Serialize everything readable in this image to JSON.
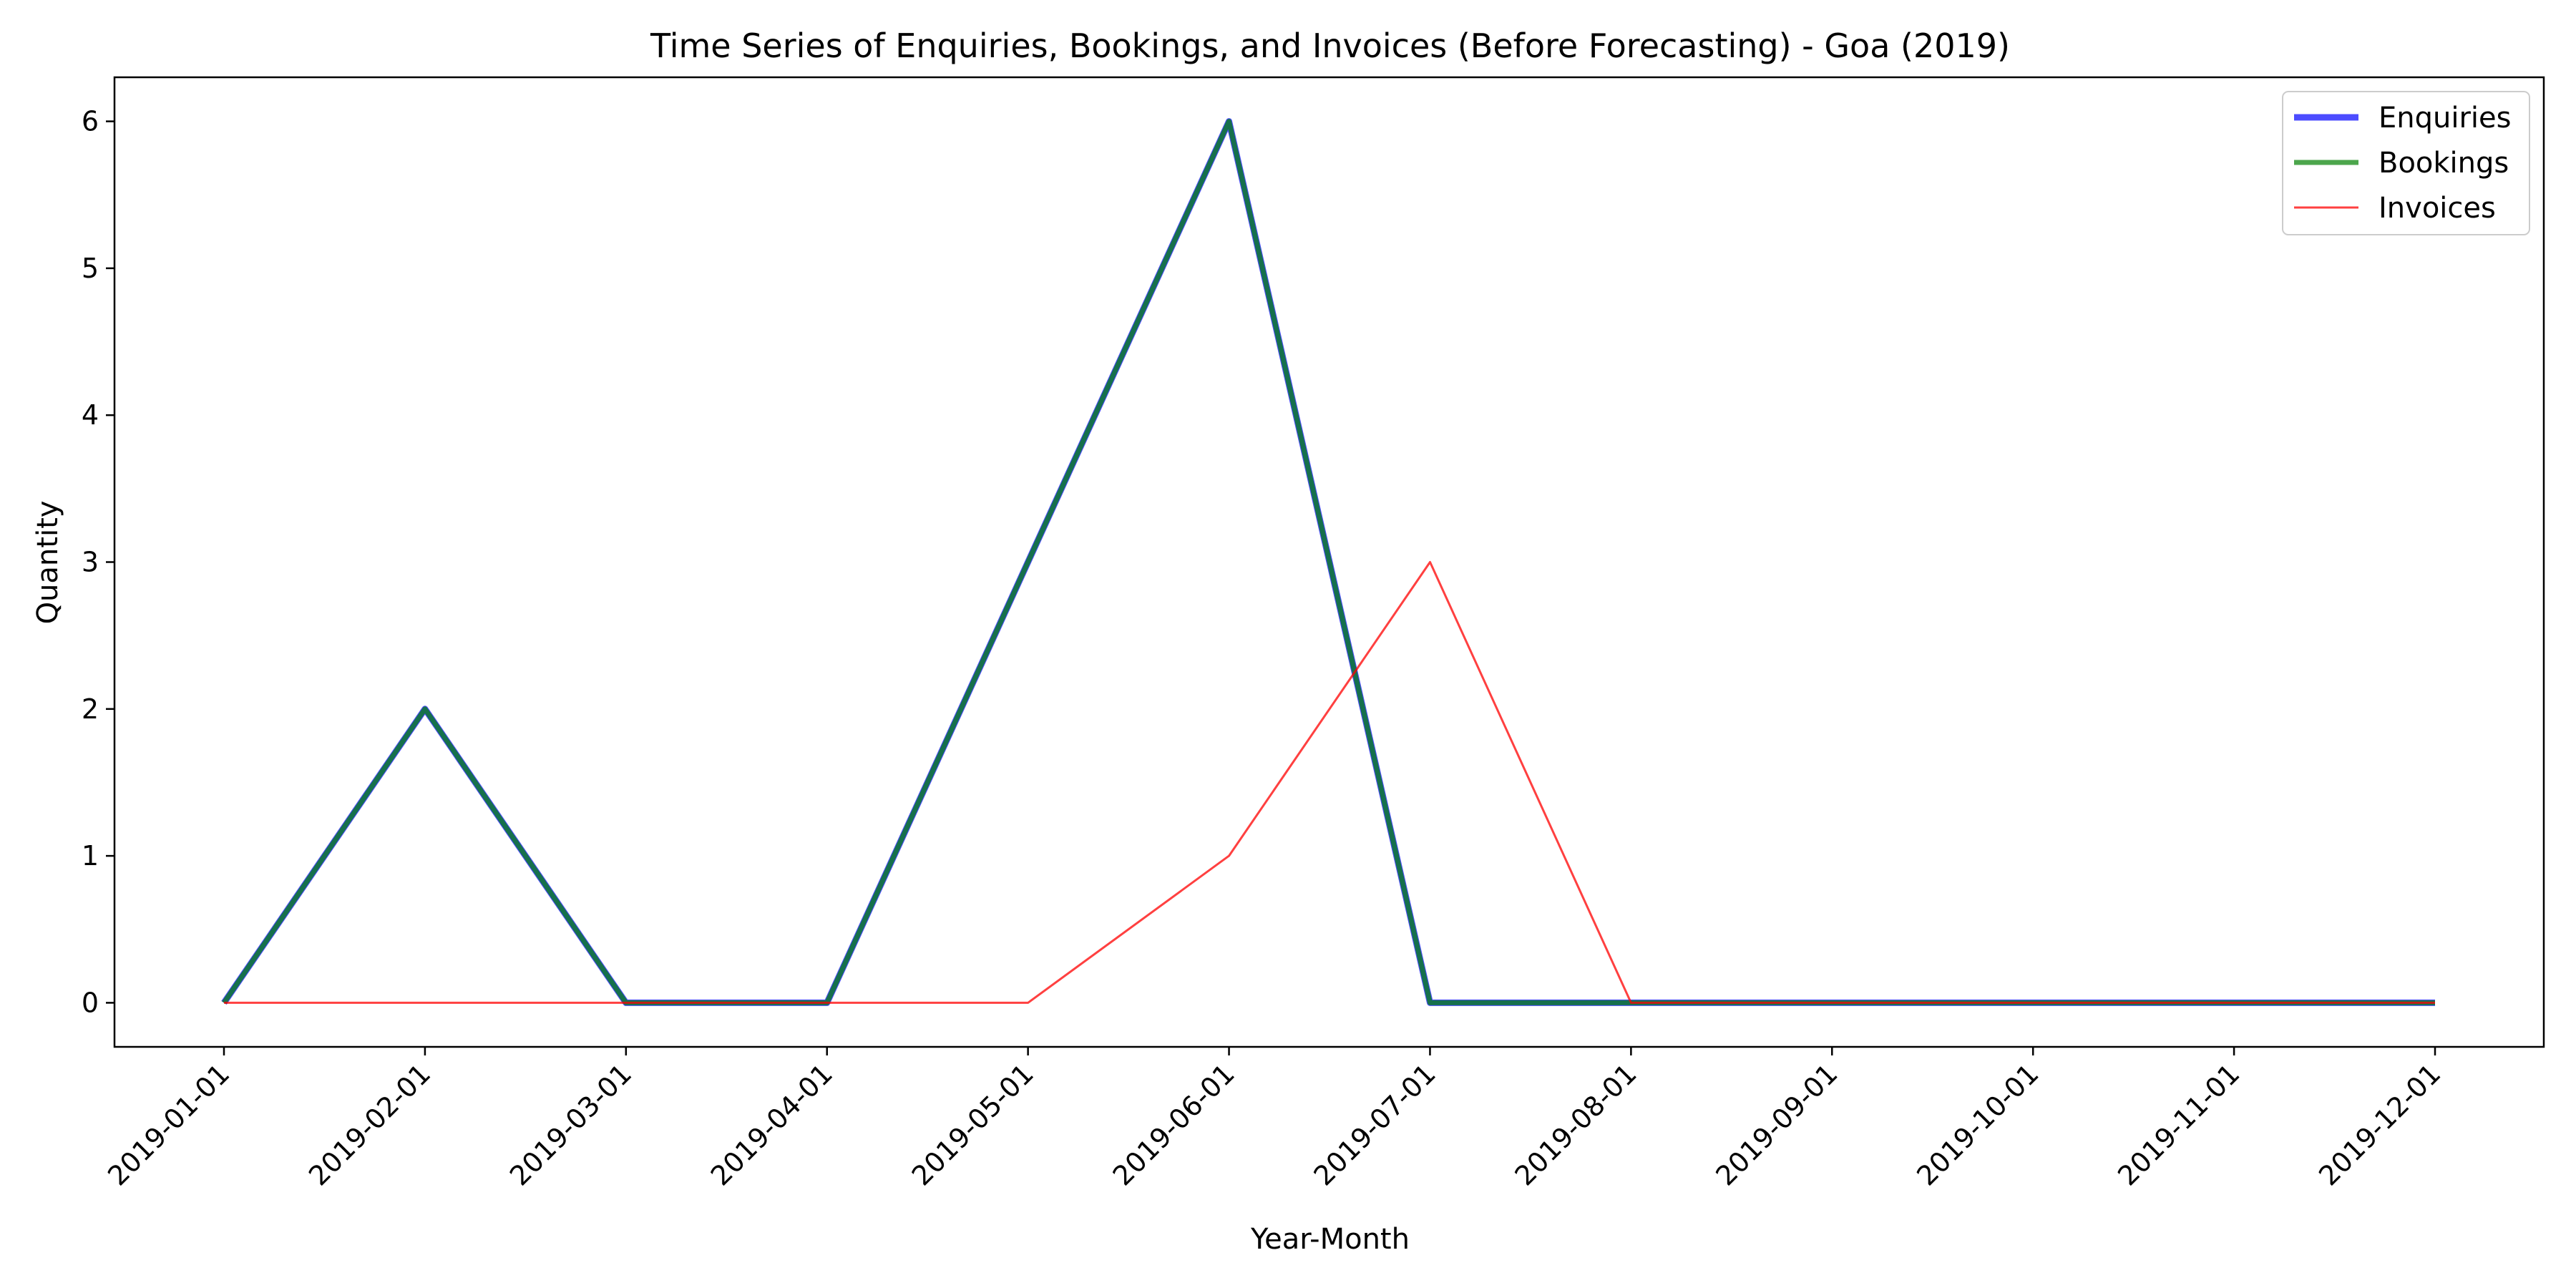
{
  "chart_data": {
    "type": "line",
    "title": "Time Series of Enquiries, Bookings, and Invoices (Before Forecasting) - Goa (2019)",
    "xlabel": "Year-Month",
    "ylabel": "Quantity",
    "categories": [
      "2019-01-01",
      "2019-02-01",
      "2019-03-01",
      "2019-04-01",
      "2019-05-01",
      "2019-06-01",
      "2019-07-01",
      "2019-08-01",
      "2019-09-01",
      "2019-10-01",
      "2019-11-01",
      "2019-12-01"
    ],
    "y_ticks": [
      "0",
      "1",
      "2",
      "3",
      "4",
      "5",
      "6"
    ],
    "ylim": [
      -0.3,
      6.3
    ],
    "grid": false,
    "legend_position": "top-right",
    "series": [
      {
        "name": "Enquiries",
        "color": "#0000ff",
        "opacity": 0.7,
        "line_weight": "thick",
        "values": [
          0,
          2,
          0,
          0,
          3,
          6,
          0,
          0,
          0,
          0,
          0,
          0
        ]
      },
      {
        "name": "Bookings",
        "color": "#008000",
        "opacity": 0.7,
        "line_weight": "medium",
        "values": [
          0,
          2,
          0,
          0,
          3,
          6,
          0,
          0,
          0,
          0,
          0,
          0
        ]
      },
      {
        "name": "Invoices",
        "color": "#ff0000",
        "opacity": 0.75,
        "line_weight": "thin",
        "values": [
          0,
          0,
          0,
          0,
          0,
          1,
          3,
          0,
          0,
          0,
          0,
          0
        ]
      }
    ]
  }
}
